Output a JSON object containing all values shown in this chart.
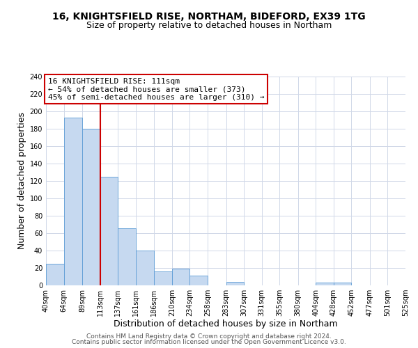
{
  "title": "16, KNIGHTSFIELD RISE, NORTHAM, BIDEFORD, EX39 1TG",
  "subtitle": "Size of property relative to detached houses in Northam",
  "xlabel": "Distribution of detached houses by size in Northam",
  "ylabel": "Number of detached properties",
  "bar_edges": [
    40,
    64,
    89,
    113,
    137,
    161,
    186,
    210,
    234,
    258,
    283,
    307,
    331,
    355,
    380,
    404,
    428,
    452,
    477,
    501,
    525
  ],
  "bar_heights": [
    25,
    193,
    180,
    125,
    66,
    40,
    16,
    19,
    11,
    0,
    4,
    0,
    0,
    0,
    0,
    3,
    3,
    0,
    0,
    0
  ],
  "bar_color": "#c6d9f0",
  "bar_edgecolor": "#5b9bd5",
  "vline_x": 113,
  "vline_color": "#cc0000",
  "annotation_lines": [
    "16 KNIGHTSFIELD RISE: 111sqm",
    "← 54% of detached houses are smaller (373)",
    "45% of semi-detached houses are larger (310) →"
  ],
  "ylim": [
    0,
    240
  ],
  "yticks": [
    0,
    20,
    40,
    60,
    80,
    100,
    120,
    140,
    160,
    180,
    200,
    220,
    240
  ],
  "tick_labels": [
    "40sqm",
    "64sqm",
    "89sqm",
    "113sqm",
    "137sqm",
    "161sqm",
    "186sqm",
    "210sqm",
    "234sqm",
    "258sqm",
    "283sqm",
    "307sqm",
    "331sqm",
    "355sqm",
    "380sqm",
    "404sqm",
    "428sqm",
    "452sqm",
    "477sqm",
    "501sqm",
    "525sqm"
  ],
  "footer1": "Contains HM Land Registry data © Crown copyright and database right 2024.",
  "footer2": "Contains public sector information licensed under the Open Government Licence v3.0.",
  "background_color": "#ffffff",
  "grid_color": "#d0d8e8",
  "title_fontsize": 10,
  "subtitle_fontsize": 9,
  "axis_label_fontsize": 9,
  "tick_fontsize": 7,
  "annotation_fontsize": 8,
  "footer_fontsize": 6.5
}
